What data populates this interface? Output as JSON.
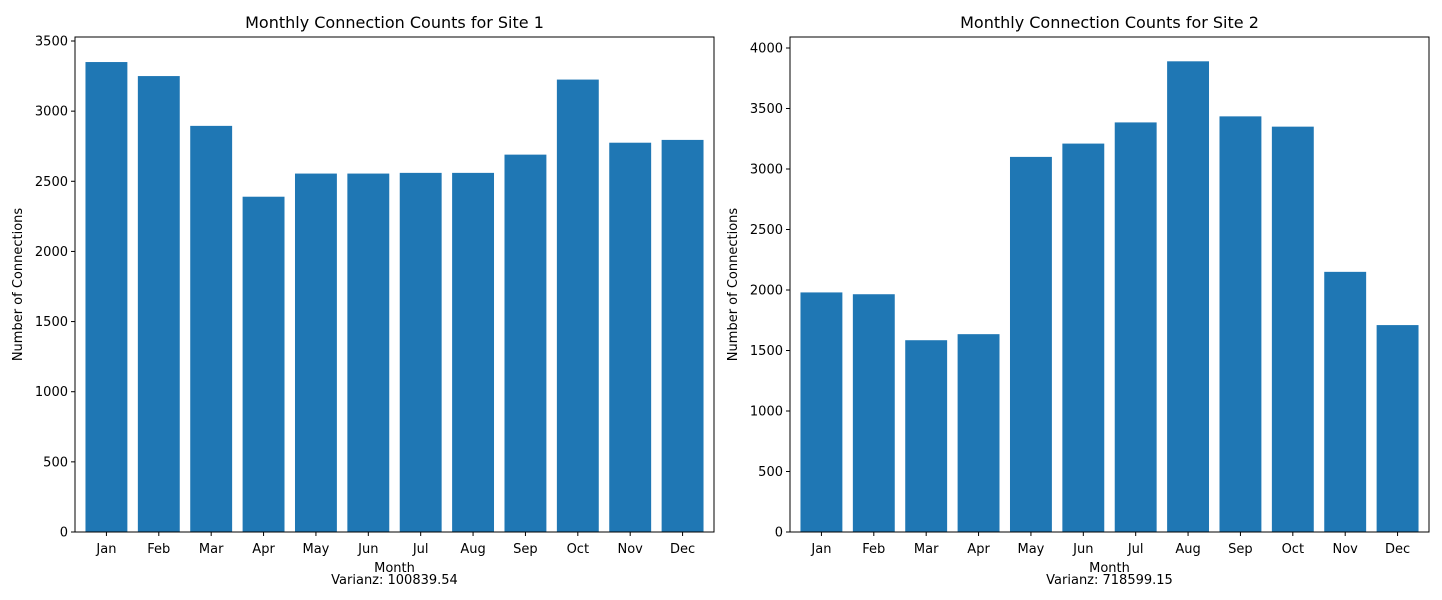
{
  "chart_data": [
    {
      "type": "bar",
      "title": "Monthly Connection Counts for Site 1",
      "xlabel": "Month",
      "ylabel": "Number of Connections",
      "footer": "Varianz: 100839.54",
      "categories": [
        "Jan",
        "Feb",
        "Mar",
        "Apr",
        "May",
        "Jun",
        "Jul",
        "Aug",
        "Sep",
        "Oct",
        "Nov",
        "Dec"
      ],
      "values": [
        3350,
        3250,
        2895,
        2390,
        2555,
        2555,
        2560,
        2560,
        2690,
        3225,
        2775,
        2795
      ],
      "ylim": [
        0,
        3500
      ],
      "yticks": [
        0,
        500,
        1000,
        1500,
        2000,
        2500,
        3000,
        3500
      ],
      "color": "#1f77b4",
      "grid": false
    },
    {
      "type": "bar",
      "title": "Monthly Connection Counts for Site 2",
      "xlabel": "Month",
      "ylabel": "Number of Connections",
      "footer": "Varianz: 718599.15",
      "categories": [
        "Jan",
        "Feb",
        "Mar",
        "Apr",
        "May",
        "Jun",
        "Jul",
        "Aug",
        "Sep",
        "Oct",
        "Nov",
        "Dec"
      ],
      "values": [
        1980,
        1965,
        1585,
        1635,
        3100,
        3210,
        3385,
        3890,
        3435,
        3350,
        2150,
        1710
      ],
      "ylim": [
        0,
        4000
      ],
      "yticks": [
        0,
        500,
        1000,
        1500,
        2000,
        2500,
        3000,
        3500,
        4000
      ],
      "color": "#1f77b4",
      "grid": false
    }
  ]
}
